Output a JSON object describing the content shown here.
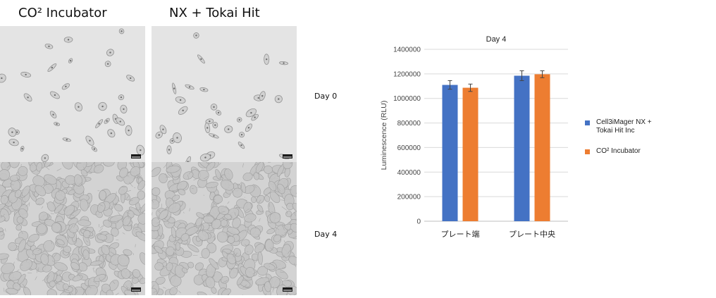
{
  "columns": [
    {
      "title": "CO² Incubator"
    },
    {
      "title": "NX + Tokai Hit"
    }
  ],
  "rows": [
    {
      "label": "Day 0"
    },
    {
      "label": "Day 4"
    }
  ],
  "colors": {
    "series_blue": "#4472c4",
    "series_orange": "#ed7d31",
    "micro_bg_sparse": "#e4e4e4",
    "micro_bg_dense": "#d3d3d3"
  },
  "chart_data": {
    "type": "bar",
    "title": "Day 4",
    "ylabel": "Luminescence (RLU)",
    "xlabel": "",
    "ylim": [
      0,
      1400000
    ],
    "yticks": [
      0,
      200000,
      400000,
      600000,
      800000,
      1000000,
      1200000,
      1400000
    ],
    "categories": [
      "プレート端",
      "プレート中央"
    ],
    "series": [
      {
        "name": "Cell3iMager NX + Tokai Hit Inc",
        "values": [
          1110000,
          1185000
        ],
        "errors": [
          35000,
          40000
        ],
        "color": "#4472c4"
      },
      {
        "name": "CO² Incubator",
        "values": [
          1087000,
          1197000
        ],
        "errors": [
          30000,
          28000
        ],
        "color": "#ed7d31"
      }
    ],
    "legend_position": "right",
    "grid": true
  }
}
